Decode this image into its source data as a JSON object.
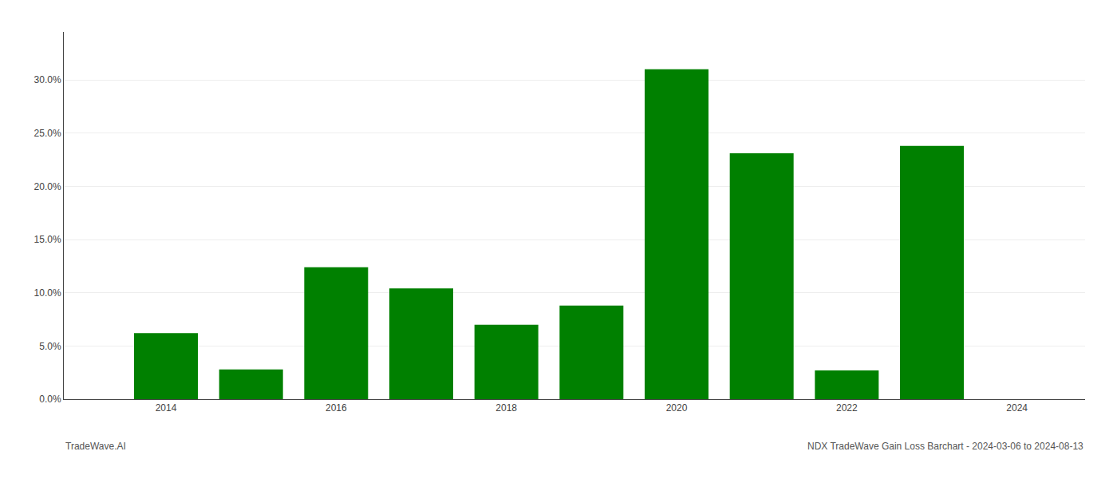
{
  "chart_data": {
    "type": "bar",
    "x": [
      2014,
      2015,
      2016,
      2017,
      2018,
      2019,
      2020,
      2021,
      2022,
      2023
    ],
    "values": [
      0.062,
      0.028,
      0.124,
      0.104,
      0.07,
      0.088,
      0.31,
      0.231,
      0.027,
      0.238
    ],
    "color": "#008000",
    "xlim": [
      2012.8,
      2024.8
    ],
    "xticks": [
      2014,
      2016,
      2018,
      2020,
      2022,
      2024
    ],
    "ylim": [
      0,
      0.345
    ],
    "yticks": [
      {
        "value": 0.0,
        "label": "0.0%"
      },
      {
        "value": 0.05,
        "label": "5.0%"
      },
      {
        "value": 0.1,
        "label": "10.0%"
      },
      {
        "value": 0.15,
        "label": "15.0%"
      },
      {
        "value": 0.2,
        "label": "20.0%"
      },
      {
        "value": 0.25,
        "label": "25.0%"
      },
      {
        "value": 0.3,
        "label": "30.0%"
      }
    ],
    "grid": true,
    "annotations": [
      "TradeWave.AI",
      "NDX TradeWave Gain Loss Barchart - 2024-03-06 to 2024-08-13"
    ]
  }
}
